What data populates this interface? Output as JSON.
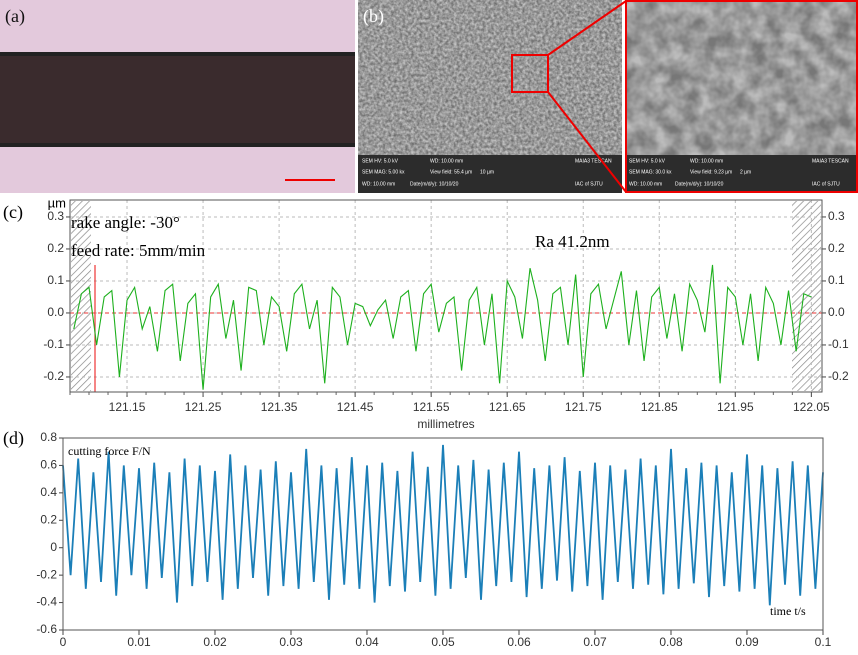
{
  "images": [
    {
      "label": "(a)"
    },
    {
      "label": "(b)",
      "info": [
        "SEM HV: 5.0 kV",
        "WD: 10.00 mm",
        "MAIA3 TESCAN",
        "SEM MAG: 5.00 kx",
        "View field: 55.4 µm",
        "10 µm",
        "WD: 10.00 mm",
        "Date(m/d/y): 10/10/20",
        "IAC of SJTU"
      ]
    },
    {
      "info": [
        "SEM HV: 5.0 kV",
        "WD: 10.00 mm",
        "MAIA3 TESCAN",
        "SEM MAG: 30.0 kx",
        "View field: 9.23 µm",
        "2 µm",
        "WD: 10.00 mm",
        "Date(m/d/y): 10/10/20",
        "IAC of SJTU"
      ]
    }
  ],
  "chart_data": [
    {
      "type": "line",
      "label": "(c)",
      "ylabel": "µm",
      "xlabel": "millimetres",
      "annotations": [
        "rake angle: -30°",
        "feed rate: 5mm/min",
        "Ra 41.2nm"
      ],
      "x": [
        121.08,
        121.09,
        121.1,
        121.11,
        121.12,
        121.13,
        121.14,
        121.15,
        121.16,
        121.17,
        121.18,
        121.19,
        121.2,
        121.21,
        121.22,
        121.23,
        121.24,
        121.25,
        121.26,
        121.27,
        121.28,
        121.29,
        121.3,
        121.31,
        121.32,
        121.33,
        121.34,
        121.35,
        121.36,
        121.37,
        121.38,
        121.39,
        121.4,
        121.41,
        121.42,
        121.43,
        121.44,
        121.45,
        121.46,
        121.47,
        121.48,
        121.49,
        121.5,
        121.51,
        121.52,
        121.53,
        121.54,
        121.55,
        121.56,
        121.57,
        121.58,
        121.59,
        121.6,
        121.61,
        121.62,
        121.63,
        121.64,
        121.65,
        121.66,
        121.67,
        121.68,
        121.69,
        121.7,
        121.71,
        121.72,
        121.73,
        121.74,
        121.75,
        121.76,
        121.77,
        121.78,
        121.79,
        121.8,
        121.81,
        121.82,
        121.83,
        121.84,
        121.85,
        121.86,
        121.87,
        121.88,
        121.89,
        121.9,
        121.91,
        121.92,
        121.93,
        121.94,
        121.95,
        121.96,
        121.97,
        121.98,
        121.99,
        122.0,
        122.01,
        122.02,
        122.03,
        122.04,
        122.05
      ],
      "series": [
        {
          "color": "#1db01d",
          "values": [
            -0.05,
            0.06,
            0.08,
            -0.1,
            0.05,
            0.07,
            -0.2,
            0.04,
            0.08,
            -0.05,
            0.02,
            -0.12,
            0.07,
            0.09,
            -0.15,
            0.03,
            0.06,
            -0.24,
            0.05,
            0.09,
            -0.08,
            0.04,
            -0.18,
            0.08,
            0.07,
            -0.1,
            0.05,
            0.02,
            -0.12,
            0.06,
            0.09,
            -0.05,
            0.04,
            -0.22,
            0.08,
            0.05,
            -0.1,
            0.03,
            0.02,
            -0.04,
            0.01,
            0.04,
            -0.08,
            0.05,
            0.07,
            -0.12,
            0.06,
            0.09,
            -0.06,
            0.03,
            0.05,
            -0.18,
            0.04,
            0.08,
            -0.1,
            0.06,
            -0.22,
            0.1,
            0.05,
            -0.08,
            0.14,
            0.04,
            -0.15,
            0.06,
            0.08,
            -0.1,
            0.12,
            -0.2,
            0.06,
            0.09,
            -0.05,
            0.04,
            0.13,
            -0.1,
            0.07,
            -0.15,
            0.05,
            0.08,
            -0.08,
            0.06,
            -0.12,
            0.09,
            0.04,
            -0.06,
            0.15,
            -0.22,
            0.08,
            0.05,
            -0.1,
            0.06,
            -0.15,
            0.08,
            0.03,
            -0.1,
            0.07,
            -0.12,
            0.06,
            0.05
          ]
        }
      ],
      "xlim": [
        121.075,
        122.064
      ],
      "xticks": [
        121.15,
        121.25,
        121.35,
        121.45,
        121.55,
        121.65,
        121.75,
        121.85,
        121.95,
        122.05
      ],
      "ylim": [
        -0.247,
        0.353
      ],
      "yticks": [
        -0.2,
        -0.1,
        {
          "value": 0,
          "label": "0.0"
        },
        0.1,
        0.2,
        0.3
      ],
      "y2lim": [
        -0.247,
        0.353
      ],
      "y2ticks": [
        -0.2,
        -0.1,
        {
          "value": 0,
          "label": "0.0"
        },
        0.1,
        0.2,
        0.3
      ],
      "grid": true
    },
    {
      "type": "line",
      "label": "(d)",
      "ylabel": "cutting force F/N",
      "xlabel": "time t/s",
      "x": [
        0,
        0.001,
        0.002,
        0.003,
        0.004,
        0.005,
        0.006,
        0.007,
        0.008,
        0.009,
        0.01,
        0.011,
        0.012,
        0.013,
        0.014,
        0.015,
        0.016,
        0.017,
        0.018,
        0.019,
        0.02,
        0.021,
        0.022,
        0.023,
        0.024,
        0.025,
        0.026,
        0.027,
        0.028,
        0.029,
        0.03,
        0.031,
        0.032,
        0.033,
        0.034,
        0.035,
        0.036,
        0.037,
        0.038,
        0.039,
        0.04,
        0.041,
        0.042,
        0.043,
        0.044,
        0.045,
        0.046,
        0.047,
        0.048,
        0.049,
        0.05,
        0.051,
        0.052,
        0.053,
        0.054,
        0.055,
        0.056,
        0.057,
        0.058,
        0.059,
        0.06,
        0.061,
        0.062,
        0.063,
        0.064,
        0.065,
        0.066,
        0.067,
        0.068,
        0.069,
        0.07,
        0.071,
        0.072,
        0.073,
        0.074,
        0.075,
        0.076,
        0.077,
        0.078,
        0.079,
        0.08,
        0.081,
        0.082,
        0.083,
        0.084,
        0.085,
        0.086,
        0.087,
        0.088,
        0.089,
        0.09,
        0.091,
        0.092,
        0.093,
        0.094,
        0.095,
        0.096,
        0.097,
        0.098,
        0.099,
        0.1
      ],
      "series": [
        {
          "color": "#1b7fb8",
          "values": [
            0.6,
            -0.2,
            0.65,
            -0.3,
            0.55,
            -0.25,
            0.7,
            -0.35,
            0.6,
            -0.2,
            0.58,
            -0.3,
            0.62,
            -0.22,
            0.55,
            -0.4,
            0.65,
            -0.28,
            0.6,
            -0.25,
            0.56,
            -0.38,
            0.68,
            -0.3,
            0.6,
            -0.22,
            0.57,
            -0.35,
            0.63,
            -0.28,
            0.55,
            -0.3,
            0.72,
            -0.25,
            0.6,
            -0.38,
            0.58,
            -0.27,
            0.66,
            -0.3,
            0.6,
            -0.4,
            0.62,
            -0.28,
            0.56,
            -0.32,
            0.7,
            -0.25,
            0.59,
            -0.35,
            0.75,
            -0.3,
            0.6,
            -0.22,
            0.64,
            -0.38,
            0.57,
            -0.28,
            0.62,
            -0.25,
            0.7,
            -0.36,
            0.58,
            -0.3,
            0.6,
            -0.24,
            0.66,
            -0.32,
            0.56,
            -0.28,
            0.62,
            -0.38,
            0.6,
            -0.25,
            0.57,
            -0.3,
            0.65,
            -0.27,
            0.6,
            -0.34,
            0.72,
            -0.3,
            0.58,
            -0.26,
            0.62,
            -0.36,
            0.6,
            -0.28,
            0.55,
            -0.32,
            0.68,
            -0.3,
            0.6,
            -0.42,
            0.58,
            -0.27,
            0.63,
            -0.35,
            0.6,
            -0.3,
            0.55
          ]
        }
      ],
      "xlim": [
        0,
        0.1
      ],
      "xticks": [
        0,
        0.01,
        0.02,
        0.03,
        0.04,
        0.05,
        0.06,
        0.07,
        0.08,
        0.09,
        0.1
      ],
      "ylim": [
        -0.6,
        0.8
      ],
      "yticks": [
        -0.6,
        -0.4,
        -0.2,
        0,
        0.2,
        0.4,
        0.6,
        0.8
      ],
      "grid": false
    }
  ]
}
